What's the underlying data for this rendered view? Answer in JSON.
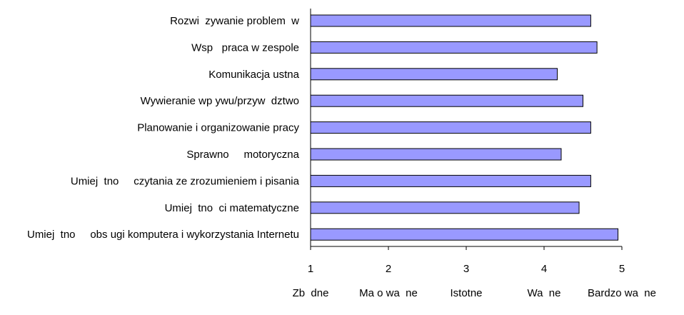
{
  "chart_data": {
    "type": "bar",
    "orientation": "horizontal",
    "categories": [
      "Rozwi  zywanie problem  w",
      "Wsp   praca w zespole",
      "Komunikacja ustna",
      "Wywieranie wp ywu/przyw  dztwo",
      "Planowanie i organizowanie pracy",
      "Sprawno     motoryczna",
      "Umiej  tno     czytania ze zrozumieniem i pisania",
      "Umiej  tno  ci matematyczne",
      "Umiej  tno     obs ugi komputera i wykorzystania Internetu"
    ],
    "values": [
      4.6,
      4.68,
      4.17,
      4.5,
      4.6,
      4.22,
      4.6,
      4.45,
      4.95
    ],
    "xlim": [
      1,
      5
    ],
    "x_ticks": [
      "1",
      "2",
      "3",
      "4",
      "5"
    ],
    "scale_labels": [
      "Zb  dne",
      "Ma o wa  ne",
      "Istotne",
      "Wa  ne",
      "Bardzo wa  ne"
    ],
    "bar_color": "#9999ff",
    "bar_edge_color": "#000000",
    "grid": false
  }
}
